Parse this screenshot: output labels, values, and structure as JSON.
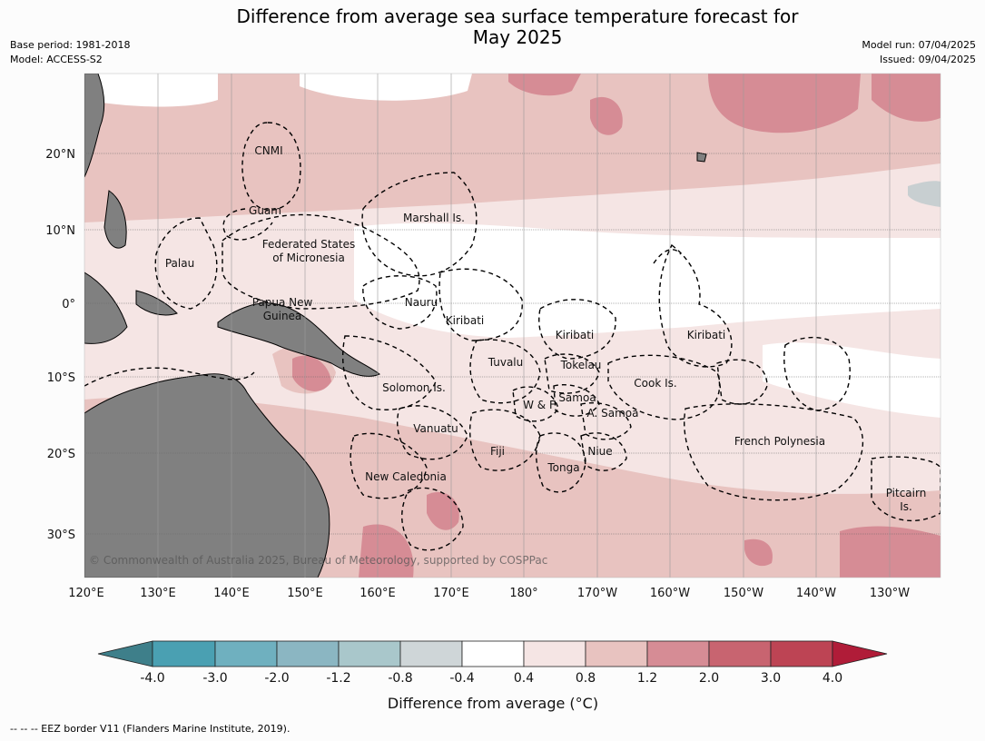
{
  "title_line1": "Difference from average sea surface temperature forecast for",
  "title_line2": "May 2025",
  "meta_left": [
    "Base period: 1981-2018",
    "Model: ACCESS-S2"
  ],
  "meta_right": [
    "Model run: 07/04/2025",
    "Issued: 09/04/2025"
  ],
  "lon_ticks": [
    "120°E",
    "130°E",
    "140°E",
    "150°E",
    "160°E",
    "170°E",
    "180°",
    "170°W",
    "160°W",
    "150°W",
    "140°W",
    "130°W"
  ],
  "lat_ticks": [
    "20°N",
    "10°N",
    "0°",
    "10°S",
    "20°S",
    "30°S"
  ],
  "labels": [
    {
      "text": "CNMI"
    },
    {
      "text": "Guam"
    },
    {
      "text": "Marshall Is."
    },
    {
      "text": "Federated States"
    },
    {
      "text": "of Micronesia"
    },
    {
      "text": "Palau"
    },
    {
      "text": "Nauru"
    },
    {
      "text": "Papua New"
    },
    {
      "text": "Guinea"
    },
    {
      "text": "Kiribati"
    },
    {
      "text": "Kiribati"
    },
    {
      "text": "Kiribati"
    },
    {
      "text": "Tuvalu"
    },
    {
      "text": "Tokelau"
    },
    {
      "text": "Cook Is."
    },
    {
      "text": "Solomon Is."
    },
    {
      "text": "Samoa"
    },
    {
      "text": "W & F"
    },
    {
      "text": "A. Samoa"
    },
    {
      "text": "Vanuatu"
    },
    {
      "text": "French Polynesia"
    },
    {
      "text": "Fiji"
    },
    {
      "text": "Niue"
    },
    {
      "text": "Tonga"
    },
    {
      "text": "New Caledonia"
    },
    {
      "text": "Pitcairn"
    },
    {
      "text": "Is."
    }
  ],
  "copyright": "© Commonwealth of Australia 2025, Bureau of Meteorology, supported by COSPPac",
  "colorbar": {
    "title": "Difference from average (°C)",
    "ticks": [
      "-4.0",
      "-3.0",
      "-2.0",
      "-1.2",
      "-0.8",
      "-0.4",
      "0.4",
      "0.8",
      "1.2",
      "2.0",
      "3.0",
      "4.0"
    ],
    "colors": [
      "#3e7f8a",
      "#4aa0b2",
      "#6fb0bf",
      "#8bb6c2",
      "#a9c7cb",
      "#cfd6d8",
      "#ffffff",
      "#f5e5e4",
      "#e8c3c0",
      "#d68c95",
      "#c86470",
      "#bd4454",
      "#b01c38"
    ]
  },
  "footer": "--  --  -- EEZ border V11 (Flanders Marine Institute, 2019)."
}
